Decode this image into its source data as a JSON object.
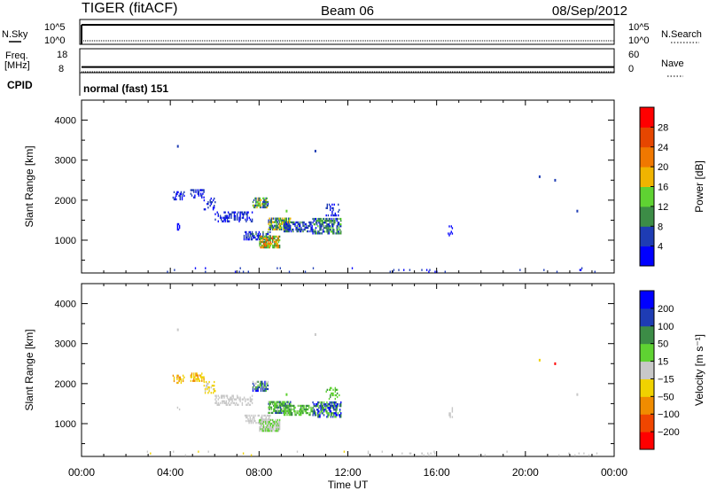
{
  "header": {
    "radar": "TIGER (fitACF)",
    "beam": "Beam 06",
    "date": "08/Sep/2012"
  },
  "strips": {
    "nsky": {
      "label": "N.Sky",
      "ticks": [
        "10^5",
        "10^0"
      ]
    },
    "nsearch": {
      "label": "N.Search"
    },
    "freq": {
      "label_lines": [
        "Freq.",
        "[MHz]"
      ],
      "ticks": [
        "18",
        "8"
      ],
      "level": 9.8
    },
    "nave": {
      "label": "Nave",
      "ticks": [
        "60",
        "0"
      ]
    },
    "cpid": {
      "label": "CPID",
      "text": "normal (fast) 151"
    }
  },
  "colors": {
    "power": [
      "#0000ff",
      "#1e3cb4",
      "#3c8c46",
      "#5fd232",
      "#f0b400",
      "#f07800",
      "#e64600",
      "#ff0000"
    ],
    "velocity": [
      "#ff0000",
      "#f04600",
      "#f08c00",
      "#f0d200",
      "#c8c8c8",
      "#5fd232",
      "#3c8c46",
      "#1e3cb4",
      "#0000ff"
    ]
  },
  "chart_data": [
    {
      "type": "heatmap",
      "name": "power",
      "xlabel": "",
      "ylabel": "Slant Range [km]",
      "xlim_hours": [
        0,
        24
      ],
      "ylim_km": [
        180,
        4500
      ],
      "yticks": [
        "4000",
        "3000",
        "2000",
        "1000"
      ],
      "colorbar_label": "Power [dB]",
      "colorbar_ticks": [
        "28",
        "24",
        "20",
        "16",
        "12",
        "8",
        "4"
      ],
      "clim": [
        0,
        32
      ],
      "scatter": [
        {
          "t_start": 4.1,
          "t_end": 4.6,
          "r_start": 2000,
          "r_end": 2200,
          "v_min": 2,
          "v_max": 6,
          "density": 0.4
        },
        {
          "t_start": 4.9,
          "t_end": 5.5,
          "r_start": 2050,
          "r_end": 2250,
          "v_min": 2,
          "v_max": 7,
          "density": 0.45
        },
        {
          "t_start": 5.5,
          "t_end": 6.0,
          "r_start": 1750,
          "r_end": 2050,
          "v_min": 2,
          "v_max": 7,
          "density": 0.3
        },
        {
          "t_start": 6.0,
          "t_end": 7.7,
          "r_start": 1450,
          "r_end": 1700,
          "v_min": 2,
          "v_max": 7,
          "density": 0.4
        },
        {
          "t_start": 7.7,
          "t_end": 8.4,
          "r_start": 1800,
          "r_end": 2050,
          "v_min": 3,
          "v_max": 18,
          "density": 0.65
        },
        {
          "t_start": 7.3,
          "t_end": 8.5,
          "r_start": 1000,
          "r_end": 1200,
          "v_min": 2,
          "v_max": 9,
          "density": 0.45
        },
        {
          "t_start": 8.0,
          "t_end": 8.9,
          "r_start": 800,
          "r_end": 1100,
          "v_min": 8,
          "v_max": 26,
          "density": 0.8
        },
        {
          "t_start": 8.4,
          "t_end": 9.4,
          "r_start": 1250,
          "r_end": 1550,
          "v_min": 4,
          "v_max": 20,
          "density": 0.75
        },
        {
          "t_start": 9.1,
          "t_end": 10.4,
          "r_start": 1200,
          "r_end": 1450,
          "v_min": 2,
          "v_max": 10,
          "density": 0.55
        },
        {
          "t_start": 10.4,
          "t_end": 11.7,
          "r_start": 1150,
          "r_end": 1550,
          "v_min": 2,
          "v_max": 14,
          "density": 0.6
        },
        {
          "t_start": 11.0,
          "t_end": 11.6,
          "r_start": 1600,
          "r_end": 1900,
          "v_min": 2,
          "v_max": 6,
          "density": 0.25
        },
        {
          "t_start": 4.3,
          "t_end": 4.4,
          "r_start": 1200,
          "r_end": 1400,
          "v_min": 2,
          "v_max": 4,
          "density": 0.3
        },
        {
          "t_start": 16.5,
          "t_end": 16.7,
          "r_start": 1100,
          "r_end": 1400,
          "v_min": 2,
          "v_max": 4,
          "density": 0.25
        },
        {
          "t_start": 14.0,
          "t_end": 16.0,
          "r_start": 190,
          "r_end": 260,
          "v_min": 2,
          "v_max": 6,
          "density": 0.15
        },
        {
          "t_start": 2.0,
          "t_end": 24.0,
          "r_start": 190,
          "r_end": 320,
          "v_min": 2,
          "v_max": 8,
          "density": 0.02
        }
      ],
      "isolated": [
        {
          "t": 4.3,
          "r": 3320,
          "v": 4
        },
        {
          "t": 10.5,
          "r": 3200,
          "v": 4
        },
        {
          "t": 20.6,
          "r": 2560,
          "v": 6
        },
        {
          "t": 21.3,
          "r": 2470,
          "v": 6
        },
        {
          "t": 22.3,
          "r": 1700,
          "v": 4
        },
        {
          "t": 9.2,
          "r": 1700,
          "v": 14
        }
      ]
    },
    {
      "type": "heatmap",
      "name": "velocity",
      "xlabel": "Time UT",
      "ylabel": "Slant Range [km]",
      "xlim_hours": [
        0,
        24
      ],
      "ylim_km": [
        180,
        4500
      ],
      "xticks": [
        "00:00",
        "04:00",
        "08:00",
        "12:00",
        "16:00",
        "20:00",
        "00:00"
      ],
      "yticks": [
        "4000",
        "3000",
        "2000",
        "1000"
      ],
      "colorbar_label": "Velocity [m s⁻¹]",
      "colorbar_ticks": [
        "200",
        "100",
        "50",
        "15",
        "−15",
        "−50",
        "−100",
        "−200"
      ],
      "clim": [
        -250,
        250
      ],
      "scatter": [
        {
          "t_start": 4.1,
          "t_end": 4.6,
          "r_start": 2000,
          "r_end": 2200,
          "v_min": -120,
          "v_max": -40,
          "density": 0.4
        },
        {
          "t_start": 4.9,
          "t_end": 5.5,
          "r_start": 2050,
          "r_end": 2250,
          "v_min": -120,
          "v_max": -30,
          "density": 0.45
        },
        {
          "t_start": 5.5,
          "t_end": 6.0,
          "r_start": 1750,
          "r_end": 2050,
          "v_min": -80,
          "v_max": -10,
          "density": 0.3
        },
        {
          "t_start": 6.0,
          "t_end": 7.7,
          "r_start": 1450,
          "r_end": 1700,
          "v_min": -14,
          "v_max": 14,
          "density": 0.4
        },
        {
          "t_start": 7.7,
          "t_end": 8.4,
          "r_start": 1800,
          "r_end": 2050,
          "v_min": -10,
          "v_max": 220,
          "density": 0.65
        },
        {
          "t_start": 7.3,
          "t_end": 8.5,
          "r_start": 1000,
          "r_end": 1200,
          "v_min": -14,
          "v_max": 14,
          "density": 0.45
        },
        {
          "t_start": 8.0,
          "t_end": 8.9,
          "r_start": 800,
          "r_end": 1100,
          "v_min": -14,
          "v_max": 60,
          "density": 0.8
        },
        {
          "t_start": 8.4,
          "t_end": 9.4,
          "r_start": 1250,
          "r_end": 1550,
          "v_min": 15,
          "v_max": 150,
          "density": 0.75
        },
        {
          "t_start": 9.1,
          "t_end": 10.4,
          "r_start": 1200,
          "r_end": 1450,
          "v_min": 20,
          "v_max": 120,
          "density": 0.55
        },
        {
          "t_start": 10.4,
          "t_end": 11.7,
          "r_start": 1150,
          "r_end": 1550,
          "v_min": 50,
          "v_max": 240,
          "density": 0.6
        },
        {
          "t_start": 11.0,
          "t_end": 11.6,
          "r_start": 1600,
          "r_end": 1900,
          "v_min": 30,
          "v_max": 100,
          "density": 0.25
        },
        {
          "t_start": 4.3,
          "t_end": 4.4,
          "r_start": 1200,
          "r_end": 1400,
          "v_min": -14,
          "v_max": 14,
          "density": 0.3
        },
        {
          "t_start": 16.5,
          "t_end": 16.7,
          "r_start": 1100,
          "r_end": 1400,
          "v_min": -14,
          "v_max": 14,
          "density": 0.25
        },
        {
          "t_start": 14.0,
          "t_end": 16.0,
          "r_start": 190,
          "r_end": 260,
          "v_min": -14,
          "v_max": 14,
          "density": 0.15
        },
        {
          "t_start": 2.0,
          "t_end": 24.0,
          "r_start": 190,
          "r_end": 320,
          "v_min": -40,
          "v_max": 14,
          "density": 0.02
        }
      ],
      "isolated": [
        {
          "t": 4.3,
          "r": 3320,
          "v": 0
        },
        {
          "t": 10.5,
          "r": 3200,
          "v": 0
        },
        {
          "t": 20.6,
          "r": 2560,
          "v": -60
        },
        {
          "t": 21.3,
          "r": 2470,
          "v": -220
        },
        {
          "t": 22.3,
          "r": 1700,
          "v": 0
        },
        {
          "t": 9.2,
          "r": 1700,
          "v": 80
        }
      ]
    }
  ]
}
